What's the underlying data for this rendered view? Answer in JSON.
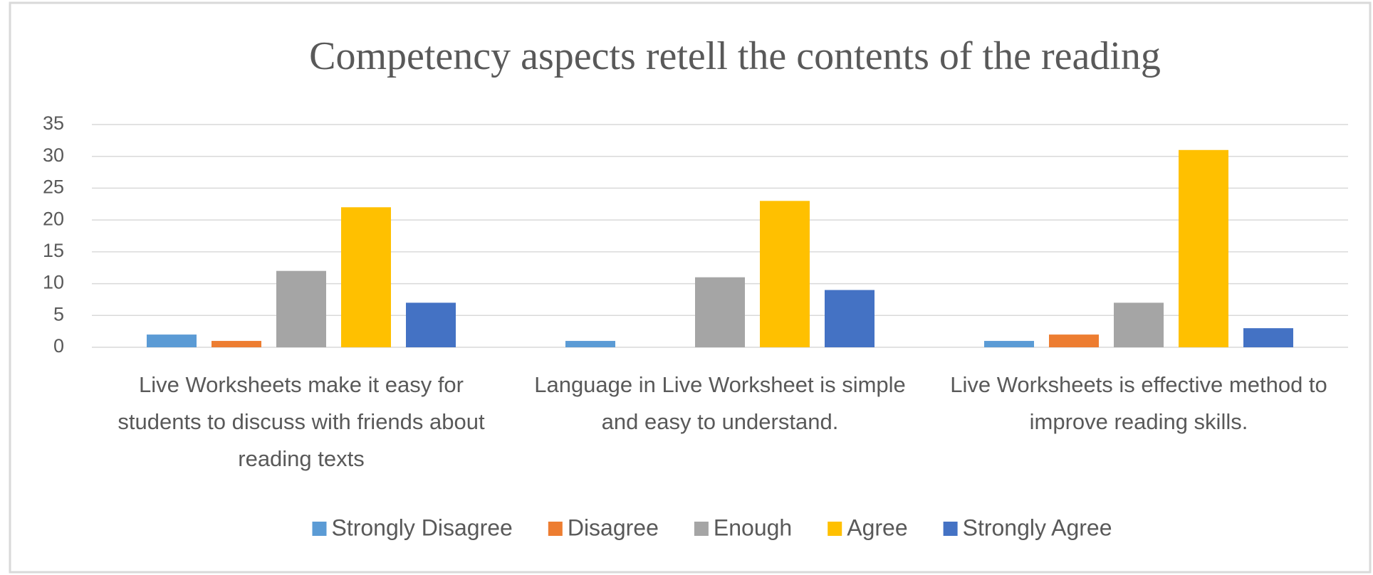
{
  "chart_data": {
    "type": "bar",
    "title": "Competency aspects retell the contents of the reading",
    "categories": [
      "Live Worksheets make it easy for students to discuss with friends about reading texts",
      "Language in Live Worksheet is simple and easy to understand.",
      "Live Worksheets is effective method to improve reading skills."
    ],
    "series": [
      {
        "name": "Strongly Disagree",
        "color": "#5b9bd5",
        "values": [
          2,
          1,
          1
        ]
      },
      {
        "name": "Disagree",
        "color": "#ed7d31",
        "values": [
          1,
          0,
          2
        ]
      },
      {
        "name": "Enough",
        "color": "#a5a5a5",
        "values": [
          12,
          11,
          7
        ]
      },
      {
        "name": "Agree",
        "color": "#ffc000",
        "values": [
          22,
          23,
          31
        ]
      },
      {
        "name": "Strongly Agree",
        "color": "#4472c4",
        "values": [
          7,
          9,
          3
        ]
      }
    ],
    "ylim": [
      0,
      35
    ],
    "yticks": [
      0,
      5,
      10,
      15,
      20,
      25,
      30,
      35
    ],
    "grid": true,
    "legend": "bottom"
  }
}
